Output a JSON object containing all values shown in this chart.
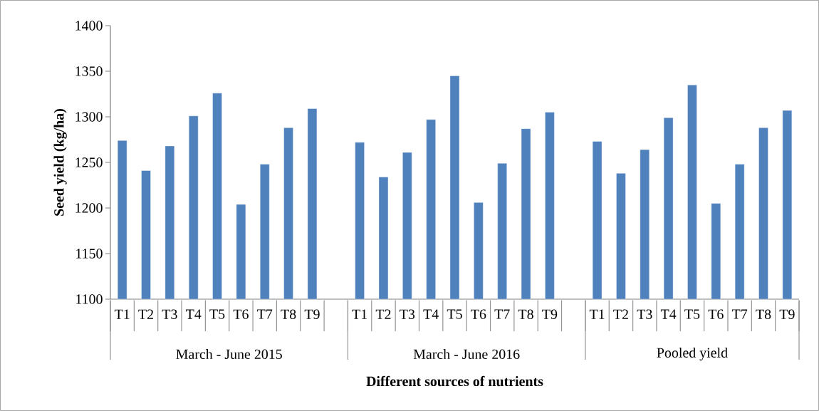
{
  "chart_data": {
    "type": "bar",
    "xlabel": "Different sources of nutrients",
    "ylabel": "Seed yield (kg/ha)",
    "categories": [
      "T1",
      "T2",
      "T3",
      "T4",
      "T5",
      "T6",
      "T7",
      "T8",
      "T9",
      null,
      "T1",
      "T2",
      "T3",
      "T4",
      "T5",
      "T6",
      "T7",
      "T8",
      "T9",
      null,
      "T1",
      "T2",
      "T3",
      "T4",
      "T5",
      "T6",
      "T7",
      "T8",
      "T9"
    ],
    "values": [
      1274,
      1241,
      1268,
      1301,
      1326,
      1204,
      1248,
      1288,
      1309,
      null,
      1272,
      1234,
      1261,
      1297,
      1345,
      1206,
      1249,
      1287,
      1305,
      null,
      1273,
      1238,
      1264,
      1299,
      1335,
      1205,
      1248,
      1288,
      1307
    ],
    "color": "#4f81bd",
    "ylim": [
      1100,
      1400
    ],
    "yticks": [
      1100,
      1150,
      1200,
      1250,
      1300,
      1350,
      1400
    ],
    "annotations": [
      "March - June 2015",
      "March - June 2016",
      "Pooled yield"
    ]
  }
}
